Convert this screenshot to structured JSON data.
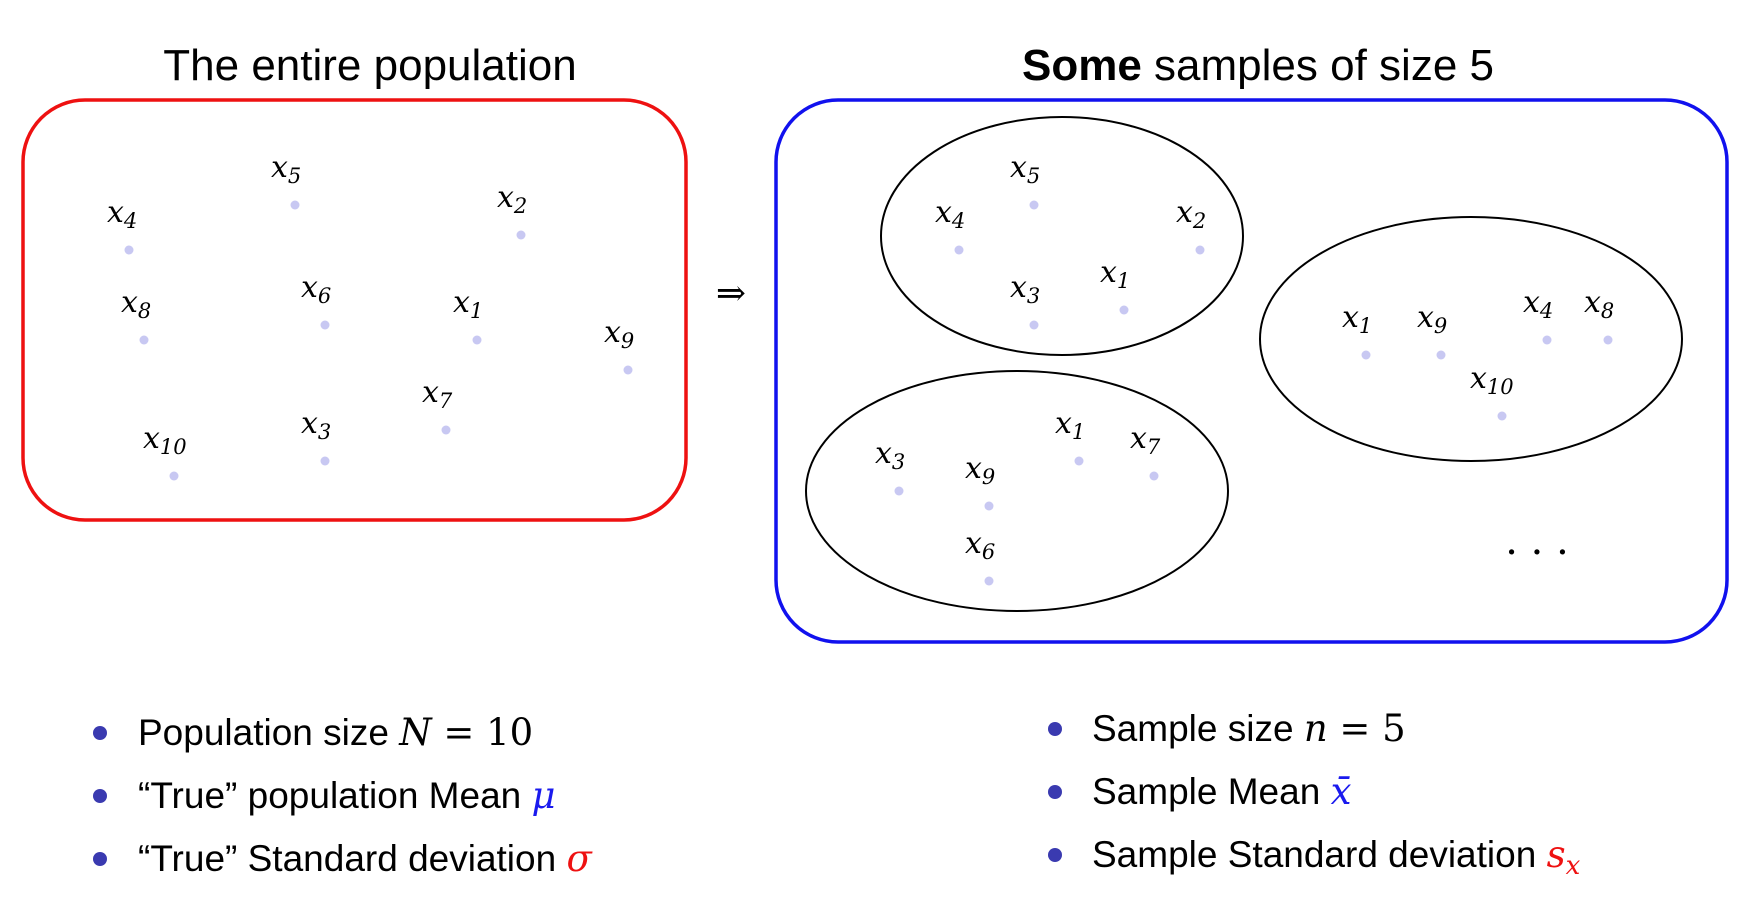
{
  "left_title": "The entire population",
  "right_title_bold": "Some",
  "right_title_rest": " samples of size 5",
  "implies_symbol": "⇒",
  "ellipsis": "· · ·",
  "colors": {
    "population_box": "#ee1111",
    "samples_box": "#1111ee",
    "dot": "#c8c8f2",
    "bullet": "#3a3ab0",
    "mu": "#1a1aee",
    "sigma": "#ee1111",
    "xbar": "#1a1aee",
    "sx": "#ee1111"
  },
  "population_points": [
    "4",
    "5",
    "2",
    "8",
    "6",
    "1",
    "9",
    "7",
    "10",
    "3"
  ],
  "sample_1_points": [
    "5",
    "4",
    "2",
    "3",
    "1"
  ],
  "sample_2_points": [
    "1",
    "9",
    "4",
    "8",
    "10"
  ],
  "sample_3_points": [
    "3",
    "9",
    "1",
    "7",
    "6"
  ],
  "left_bullets": [
    {
      "text": "Population size ",
      "math": "N",
      "math_rest": " = 10"
    },
    {
      "text": "“True” population Mean ",
      "math": "μ"
    },
    {
      "text": "“True” Standard deviation ",
      "math": "σ"
    }
  ],
  "right_bullets": [
    {
      "text": "Sample size ",
      "math": "n",
      "math_rest": " = 5"
    },
    {
      "text": "Sample Mean ",
      "math": "x̄"
    },
    {
      "text": "Sample Standard deviation ",
      "math": "s",
      "math_sub": "x"
    }
  ]
}
